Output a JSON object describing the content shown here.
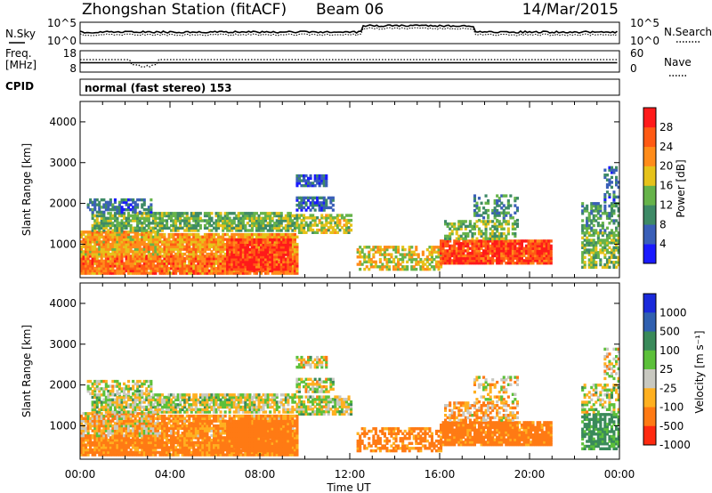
{
  "header": {
    "station_title": "Zhongshan Station (fitACF)",
    "beam_label": "Beam 06",
    "date_label": "14/Mar/2015"
  },
  "params_panel": {
    "nsky_label": "N.Sky",
    "nsky_ticks": [
      "10^5",
      "10^0"
    ],
    "nsearch_label": "N.Search",
    "nsearch_ticks": [
      "10^5",
      "10^0"
    ],
    "freq_label_line1": "Freq.",
    "freq_label_line2": "[MHz]",
    "freq_ticks": [
      "18",
      "8"
    ],
    "nave_label": "Nave",
    "nave_ticks": [
      "60",
      "0"
    ],
    "cpid_label": "CPID",
    "cpid_value": "normal (fast stereo) 153"
  },
  "chart_data": [
    {
      "type": "heatmap",
      "name": "power",
      "ylabel": "Slant Range [km]",
      "ylim": [
        180,
        4500
      ],
      "yticks": [
        1000,
        2000,
        3000,
        4000
      ],
      "xlim_hours": [
        0,
        24
      ],
      "colorbar_label": "Power [dB]",
      "colorbar_ticks": [
        "4",
        "8",
        "12",
        "16",
        "20",
        "24",
        "28"
      ],
      "colorbar_colors": [
        "#1a1aff",
        "#3a5fb8",
        "#3e8a66",
        "#66b34a",
        "#e6c21a",
        "#ff8c1a",
        "#ff5a14",
        "#ff1a1a"
      ]
    },
    {
      "type": "heatmap",
      "name": "velocity",
      "ylabel": "Slant Range [km]",
      "ylim": [
        180,
        4500
      ],
      "yticks": [
        1000,
        2000,
        3000,
        4000
      ],
      "xlim_hours": [
        0,
        24
      ],
      "xticks": [
        "00:00",
        "04:00",
        "08:00",
        "12:00",
        "16:00",
        "20:00",
        "00:00"
      ],
      "xlabel": "Time UT",
      "colorbar_label": "Velocity [m s⁻¹]",
      "colorbar_ticks": [
        "1000",
        "500",
        "100",
        "25",
        "-25",
        "-100",
        "-500",
        "-1000"
      ],
      "colorbar_colors": [
        "#1a2adb",
        "#3060b0",
        "#3a8a5a",
        "#5cc03a",
        "#c8c8c0",
        "#ffb020",
        "#ff7a14",
        "#ff2a10"
      ]
    }
  ]
}
